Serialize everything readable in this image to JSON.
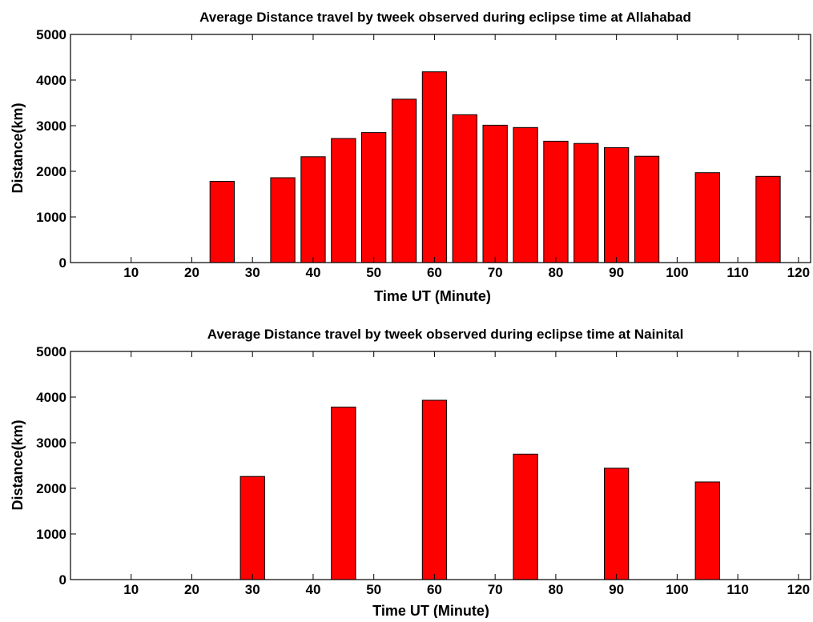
{
  "chart_data": [
    {
      "type": "bar",
      "title": "Average Distance travel by tweek observed during eclipse time at Allahabad",
      "xlabel": "Time UT (Minute)",
      "ylabel": "Distance(km)",
      "xlim": [
        0,
        122
      ],
      "ylim": [
        0,
        5000
      ],
      "xticks": [
        10,
        20,
        30,
        40,
        50,
        60,
        70,
        80,
        90,
        100,
        110,
        120
      ],
      "yticks": [
        0,
        1000,
        2000,
        3000,
        4000,
        5000
      ],
      "bar_color": "#ff0000",
      "bar_width": 4,
      "x": [
        25,
        35,
        40,
        45,
        50,
        55,
        60,
        65,
        70,
        75,
        80,
        85,
        90,
        95,
        105,
        115
      ],
      "values": [
        1780,
        1860,
        2320,
        2720,
        2850,
        3580,
        4180,
        3240,
        3010,
        2960,
        2660,
        2610,
        2520,
        2330,
        1970,
        1890
      ]
    },
    {
      "type": "bar",
      "title": "Average Distance travel by tweek observed during eclipse time at Nainital",
      "xlabel": "Time UT (Minute)",
      "ylabel": "Distance(km)",
      "xlim": [
        0,
        122
      ],
      "ylim": [
        0,
        5000
      ],
      "xticks": [
        10,
        20,
        30,
        40,
        50,
        60,
        70,
        80,
        90,
        100,
        110,
        120
      ],
      "yticks": [
        0,
        1000,
        2000,
        3000,
        4000,
        5000
      ],
      "bar_color": "#ff0000",
      "bar_width": 4,
      "x": [
        30,
        45,
        60,
        75,
        90,
        105
      ],
      "values": [
        2260,
        3780,
        3930,
        2750,
        2440,
        2140
      ]
    }
  ]
}
